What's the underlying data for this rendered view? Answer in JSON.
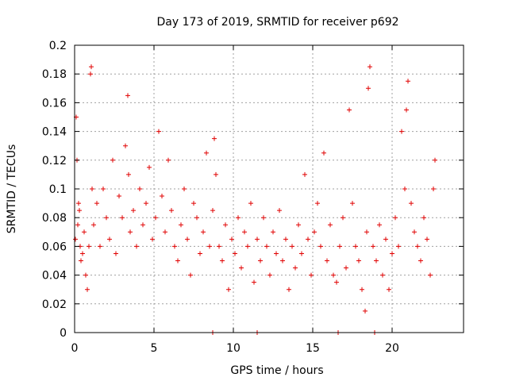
{
  "chart_data": {
    "type": "scatter",
    "title": "Day 173 of 2019, SRMTID for receiver p692",
    "xlabel": "GPS time / hours",
    "ylabel": "SRMTID / TECUs",
    "xlim": [
      0,
      24.5
    ],
    "ylim": [
      0,
      0.2
    ],
    "xticks": [
      0,
      5,
      10,
      15,
      20
    ],
    "xtick_labels": [
      "0",
      "5",
      "10",
      "15",
      "20"
    ],
    "yticks": [
      0,
      0.02,
      0.04,
      0.06,
      0.08,
      0.1,
      0.12,
      0.14,
      0.16,
      0.18,
      0.2
    ],
    "ytick_labels": [
      "0",
      "0.02",
      "0.04",
      "0.06",
      "0.08",
      "0.1",
      "0.12",
      "0.14",
      "0.16",
      "0.18",
      "0.2"
    ],
    "grid": true,
    "marker": "plus",
    "color": "#e00000",
    "series": [
      {
        "name": "SRMTID",
        "x": [
          0.05,
          0.1,
          0.15,
          0.2,
          0.25,
          0.3,
          0.35,
          0.4,
          0.5,
          0.6,
          0.7,
          0.8,
          0.9,
          1.0,
          1.05,
          1.1,
          1.2,
          1.4,
          1.6,
          1.8,
          2.0,
          2.2,
          2.4,
          2.6,
          2.8,
          3.0,
          3.2,
          3.35,
          3.4,
          3.5,
          3.7,
          3.9,
          4.1,
          4.3,
          4.5,
          4.7,
          4.9,
          5.1,
          5.3,
          5.5,
          5.7,
          5.9,
          6.1,
          6.3,
          6.5,
          6.7,
          6.9,
          7.1,
          7.3,
          7.5,
          7.7,
          7.9,
          8.1,
          8.3,
          8.5,
          8.7,
          8.8,
          8.9,
          9.1,
          9.3,
          9.5,
          9.7,
          9.9,
          10.1,
          10.3,
          10.5,
          10.7,
          10.9,
          11.1,
          11.3,
          11.5,
          11.7,
          11.9,
          12.1,
          12.3,
          12.5,
          12.7,
          12.9,
          13.1,
          13.3,
          13.5,
          13.7,
          13.9,
          14.1,
          14.3,
          14.5,
          14.7,
          14.9,
          15.1,
          15.3,
          15.5,
          15.7,
          15.9,
          16.1,
          16.3,
          16.5,
          16.7,
          16.9,
          17.1,
          17.3,
          17.5,
          17.7,
          17.9,
          18.1,
          18.3,
          18.4,
          18.5,
          18.6,
          18.8,
          19.0,
          19.2,
          19.4,
          19.6,
          19.8,
          20.0,
          20.2,
          20.4,
          20.6,
          20.8,
          20.9,
          21.0,
          21.2,
          21.4,
          21.6,
          21.8,
          22.0,
          22.2,
          22.4,
          22.6,
          22.7
        ],
        "y": [
          0.065,
          0.15,
          0.12,
          0.075,
          0.09,
          0.085,
          0.06,
          0.05,
          0.055,
          0.07,
          0.04,
          0.03,
          0.06,
          0.18,
          0.185,
          0.1,
          0.075,
          0.09,
          0.06,
          0.1,
          0.08,
          0.065,
          0.12,
          0.055,
          0.095,
          0.08,
          0.13,
          0.165,
          0.11,
          0.07,
          0.085,
          0.06,
          0.1,
          0.075,
          0.09,
          0.115,
          0.065,
          0.08,
          0.14,
          0.095,
          0.07,
          0.12,
          0.085,
          0.06,
          0.05,
          0.075,
          0.1,
          0.065,
          0.04,
          0.09,
          0.08,
          0.055,
          0.07,
          0.125,
          0.06,
          0.085,
          0.135,
          0.11,
          0.06,
          0.05,
          0.075,
          0.03,
          0.065,
          0.055,
          0.08,
          0.045,
          0.07,
          0.06,
          0.09,
          0.035,
          0.065,
          0.05,
          0.08,
          0.06,
          0.04,
          0.07,
          0.055,
          0.085,
          0.05,
          0.065,
          0.03,
          0.06,
          0.045,
          0.075,
          0.055,
          0.11,
          0.065,
          0.04,
          0.07,
          0.09,
          0.06,
          0.125,
          0.05,
          0.075,
          0.04,
          0.035,
          0.06,
          0.08,
          0.045,
          0.155,
          0.09,
          0.06,
          0.05,
          0.03,
          0.015,
          0.07,
          0.17,
          0.185,
          0.06,
          0.05,
          0.075,
          0.04,
          0.065,
          0.03,
          0.055,
          0.08,
          0.06,
          0.14,
          0.1,
          0.155,
          0.175,
          0.09,
          0.07,
          0.06,
          0.05,
          0.08,
          0.065,
          0.04,
          0.1,
          0.12
        ]
      }
    ],
    "baseline_marks_x": [
      8.7,
      11.5,
      16.6,
      18.9
    ]
  }
}
